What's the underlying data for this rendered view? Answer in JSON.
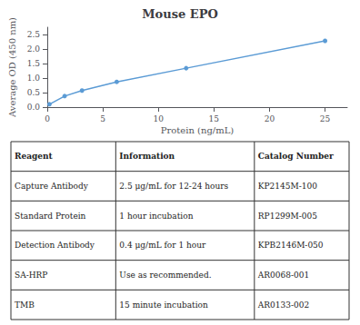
{
  "chart_data": {
    "type": "line",
    "title": "Mouse EPO",
    "xlabel": "Protein (ng/mL)",
    "ylabel": "Average OD (450 nm)",
    "x": [
      0.195,
      1.5625,
      3.125,
      6.25,
      12.5,
      25.0
    ],
    "values": [
      0.1,
      0.38,
      0.57,
      0.87,
      1.34,
      2.28
    ],
    "color": "#5B9BD5",
    "marker": "circle",
    "line_style": "solid",
    "xlim": [
      0,
      27
    ],
    "xticks": [
      0,
      5,
      10,
      15,
      20,
      25
    ],
    "ylim": [
      0,
      2.75
    ],
    "yticks": [
      {
        "value": 0,
        "label": "0.0"
      },
      0.5,
      {
        "value": 1.0,
        "label": "1.0"
      },
      1.5,
      {
        "value": 2.0,
        "label": "2.0"
      },
      2.5
    ],
    "grid": false,
    "table": {
      "headers": [
        "Reagent",
        "Information",
        "Catalog Number"
      ],
      "rows": [
        [
          "Capture Antibody",
          "2.5 μg/mL for 12-24 hours",
          "KP2145M-100"
        ],
        [
          "Standard Protein",
          "1 hour incubation",
          "RP1299M-005"
        ],
        [
          "Detection Antibody",
          "0.4 μg/mL for 1 hour",
          "KPB2146M-050"
        ],
        [
          "SA-HRP",
          "Use as recommended.",
          "AR0068-001"
        ],
        [
          "TMB",
          "15 minute incubation",
          "AR0133-002"
        ]
      ]
    }
  }
}
